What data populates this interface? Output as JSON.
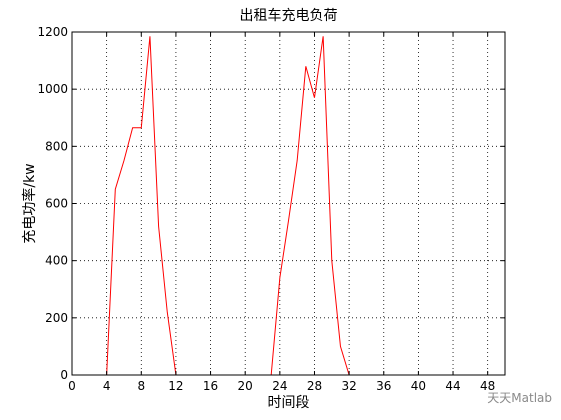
{
  "chart_data": {
    "type": "line",
    "title": "出租车充电负荷",
    "xlabel": "时间段",
    "ylabel": "充电功率/kw",
    "xlim": [
      0,
      50
    ],
    "ylim": [
      0,
      1200
    ],
    "xticks": [
      0,
      4,
      8,
      12,
      16,
      20,
      24,
      28,
      32,
      36,
      40,
      44,
      48
    ],
    "yticks": [
      0,
      200,
      400,
      600,
      800,
      1000,
      1200
    ],
    "grid": true,
    "grid_style": "dotted",
    "series": [
      {
        "color": "#ff0000",
        "x": [
          0,
          1,
          2,
          3,
          4,
          5,
          6,
          7,
          8,
          9,
          10,
          11,
          12,
          13,
          14,
          15,
          16,
          17,
          18,
          19,
          20,
          21,
          22,
          23,
          24,
          25,
          26,
          27,
          28,
          29,
          30,
          31,
          32,
          33,
          34,
          35,
          36,
          37,
          38,
          39,
          40,
          41,
          42,
          43,
          44,
          45,
          46,
          47,
          48
        ],
        "y": [
          0,
          0,
          0,
          0,
          0,
          650,
          750,
          865,
          865,
          1185,
          520,
          220,
          0,
          0,
          0,
          0,
          0,
          0,
          0,
          0,
          0,
          0,
          0,
          0,
          340,
          540,
          750,
          1080,
          970,
          1185,
          400,
          100,
          0,
          0,
          0,
          0,
          0,
          0,
          0,
          0,
          0,
          0,
          0,
          0,
          0,
          0,
          0,
          0,
          0
        ]
      }
    ]
  },
  "watermark": "天天Matlab"
}
